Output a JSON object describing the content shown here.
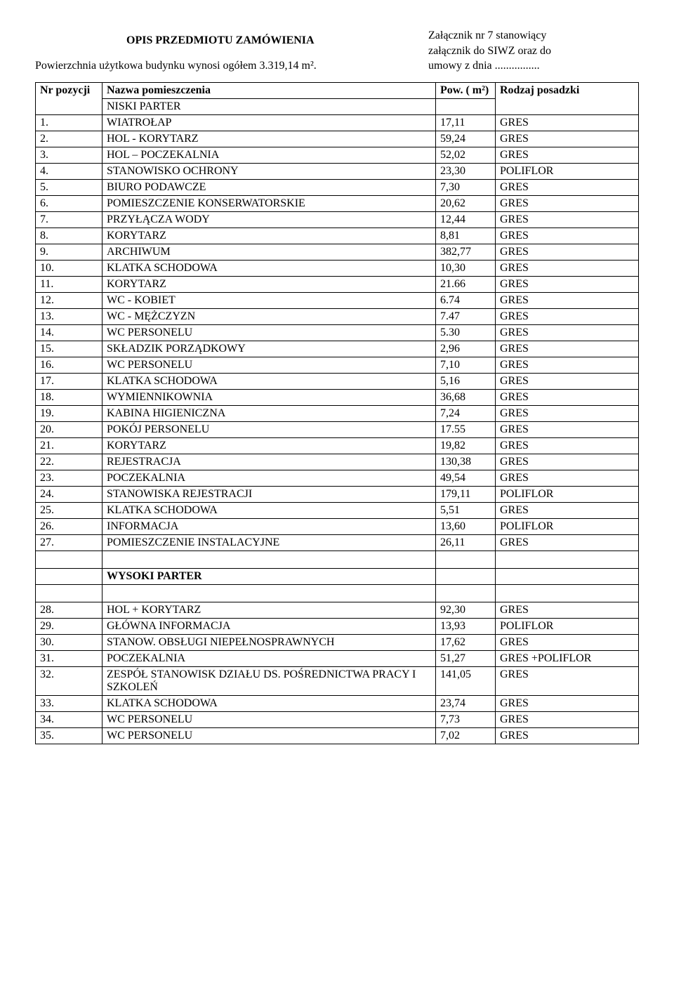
{
  "attachment_note": {
    "line1": "Załącznik nr 7 stanowiący",
    "line2": "załącznik do SIWZ oraz do",
    "line3": "umowy z dnia ................"
  },
  "title": "OPIS PRZEDMIOTU ZAMÓWIENIA",
  "area_line": "Powierzchnia użytkowa budynku wynosi ogółem 3.319,14 m².",
  "headers": {
    "nr": "Nr pozycji",
    "name": "Nazwa pomieszczenia",
    "pow": "Pow. ( m²)",
    "rodzaj": "Rodzaj posadzki"
  },
  "section1_label": "NISKI PARTER",
  "section1_rows": [
    {
      "nr": "1.",
      "name": "WIATROŁAP",
      "pow": "17,11",
      "rod": "GRES"
    },
    {
      "nr": "2.",
      "name": "HOL - KORYTARZ",
      "pow": "59,24",
      "rod": "GRES"
    },
    {
      "nr": "3.",
      "name": "HOL – POCZEKALNIA",
      "pow": "52,02",
      "rod": "GRES"
    },
    {
      "nr": "4.",
      "name": "STANOWISKO OCHRONY",
      "pow": "23,30",
      "rod": "POLIFLOR"
    },
    {
      "nr": "5.",
      "name": "BIURO PODAWCZE",
      "pow": "7,30",
      "rod": "GRES"
    },
    {
      "nr": "6.",
      "name": "POMIESZCZENIE KONSERWATORSKIE",
      "pow": "20,62",
      "rod": "GRES"
    },
    {
      "nr": "7.",
      "name": "PRZYŁĄCZA WODY",
      "pow": "12,44",
      "rod": "GRES"
    },
    {
      "nr": "8.",
      "name": "KORYTARZ",
      "pow": "8,81",
      "rod": "GRES"
    },
    {
      "nr": "9.",
      "name": "ARCHIWUM",
      "pow": "382,77",
      "rod": "GRES"
    },
    {
      "nr": "10.",
      "name": "KLATKA SCHODOWA",
      "pow": "10,30",
      "rod": "GRES"
    },
    {
      "nr": "11.",
      "name": "KORYTARZ",
      "pow": "21.66",
      "rod": "GRES"
    },
    {
      "nr": "12.",
      "name": "WC - KOBIET",
      "pow": "6.74",
      "rod": "GRES"
    },
    {
      "nr": "13.",
      "name": "WC - MĘŻCZYZN",
      "pow": "7.47",
      "rod": "GRES"
    },
    {
      "nr": "14.",
      "name": "WC PERSONELU",
      "pow": "5.30",
      "rod": "GRES"
    },
    {
      "nr": "15.",
      "name": "SKŁADZIK PORZĄDKOWY",
      "pow": "2,96",
      "rod": "GRES"
    },
    {
      "nr": "16.",
      "name": "WC PERSONELU",
      "pow": "7,10",
      "rod": "GRES"
    },
    {
      "nr": "17.",
      "name": "KLATKA SCHODOWA",
      "pow": "5,16",
      "rod": "GRES"
    },
    {
      "nr": "18.",
      "name": "WYMIENNIKOWNIA",
      "pow": "36,68",
      "rod": "GRES"
    },
    {
      "nr": "19.",
      "name": "KABINA HIGIENICZNA",
      "pow": "7,24",
      "rod": "GRES"
    },
    {
      "nr": "20.",
      "name": "POKÓJ PERSONELU",
      "pow": "17.55",
      "rod": "GRES"
    },
    {
      "nr": "21.",
      "name": "KORYTARZ",
      "pow": "19,82",
      "rod": "GRES"
    },
    {
      "nr": "22.",
      "name": "REJESTRACJA",
      "pow": "130,38",
      "rod": "GRES"
    },
    {
      "nr": "23.",
      "name": "POCZEKALNIA",
      "pow": "49,54",
      "rod": "GRES"
    },
    {
      "nr": "24.",
      "name": "STANOWISKA REJESTRACJI",
      "pow": "179,11",
      "rod": "POLIFLOR"
    },
    {
      "nr": "25.",
      "name": "KLATKA SCHODOWA",
      "pow": "5,51",
      "rod": "GRES"
    },
    {
      "nr": "26.",
      "name": "INFORMACJA",
      "pow": "13,60",
      "rod": "POLIFLOR"
    },
    {
      "nr": "27.",
      "name": "POMIESZCZENIE INSTALACYJNE",
      "pow": "26,11",
      "rod": "GRES"
    }
  ],
  "section2_label": "WYSOKI PARTER",
  "section2_rows": [
    {
      "nr": "28.",
      "name": "HOL + KORYTARZ",
      "pow": "92,30",
      "rod": "GRES"
    },
    {
      "nr": "29.",
      "name": "GŁÓWNA INFORMACJA",
      "pow": "13,93",
      "rod": "POLIFLOR"
    },
    {
      "nr": "30.",
      "name": "STANOW. OBSŁUGI NIEPEŁNOSPRAWNYCH",
      "pow": "17,62",
      "rod": "GRES"
    },
    {
      "nr": "31.",
      "name": "POCZEKALNIA",
      "pow": "51,27",
      "rod": "GRES +POLIFLOR"
    },
    {
      "nr": "32.",
      "name": "ZESPÓŁ STANOWISK DZIAŁU DS. POŚREDNICTWA PRACY I SZKOLEŃ",
      "pow": "141,05",
      "rod": "GRES"
    },
    {
      "nr": "33.",
      "name": "KLATKA SCHODOWA",
      "pow": "23,74",
      "rod": "GRES"
    },
    {
      "nr": "34.",
      "name": "WC PERSONELU",
      "pow": "7,73",
      "rod": "GRES"
    },
    {
      "nr": "35.",
      "name": "WC PERSONELU",
      "pow": "7,02",
      "rod": "GRES"
    }
  ]
}
